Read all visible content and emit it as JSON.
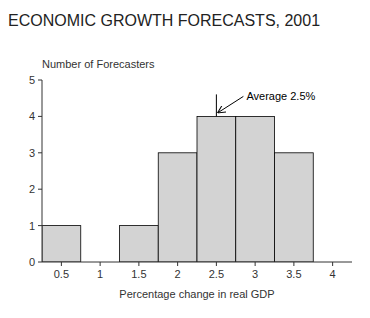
{
  "chart_data": {
    "type": "bar",
    "title": "ECONOMIC GROWTH FORECASTS, 2001",
    "y_label": "Number of Forecasters",
    "x_label": "Percentage change in real GDP",
    "x": [
      0.5,
      1.0,
      1.5,
      2.0,
      2.5,
      3.0,
      3.5,
      4.0
    ],
    "values": [
      1,
      0,
      1,
      3,
      4,
      4,
      3,
      0
    ],
    "color": "#d3d3d3",
    "xlim": [
      0.25,
      4.25
    ],
    "xticks": [
      0.5,
      1,
      1.5,
      2,
      2.5,
      3,
      3.5,
      4
    ],
    "ylim": [
      0,
      5
    ],
    "yticks": [
      0,
      1,
      2,
      3,
      4,
      5
    ],
    "grid": false,
    "annotations": [
      {
        "text": "Average 2.5%",
        "x": 2.5
      }
    ]
  }
}
